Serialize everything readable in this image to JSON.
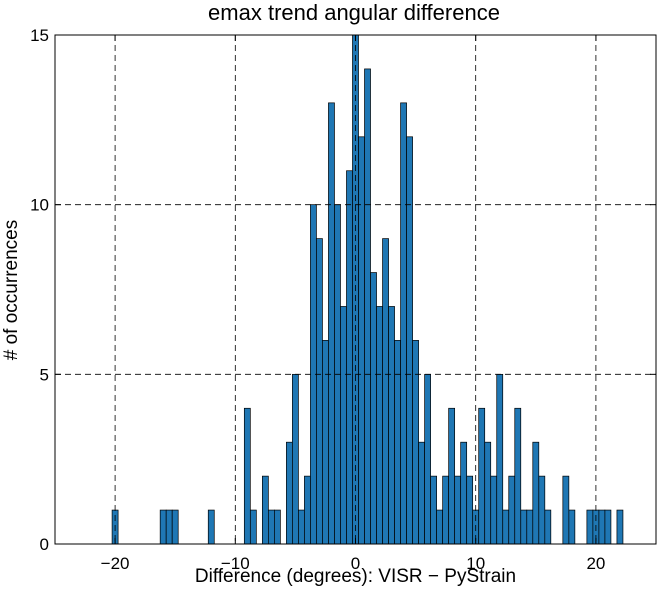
{
  "chart_data": {
    "type": "bar",
    "title": "emax trend angular difference",
    "xlabel": "Difference (degrees): VISR − PyStrain",
    "ylabel": "# of occurrences",
    "xlim": [
      -25,
      25
    ],
    "ylim": [
      0,
      15
    ],
    "xticks": [
      -20,
      -10,
      0,
      10,
      20
    ],
    "xtick_labels": [
      "−20",
      "−10",
      "0",
      "10",
      "20"
    ],
    "yticks": [
      0,
      5,
      10,
      15
    ],
    "ytick_labels": [
      "0",
      "5",
      "10",
      "15"
    ],
    "grid": true,
    "bar_color": "#1f77b4",
    "bin_width": 0.5,
    "bins": [
      {
        "x": -20.0,
        "count": 1
      },
      {
        "x": -16.0,
        "count": 1
      },
      {
        "x": -15.5,
        "count": 1
      },
      {
        "x": -15.0,
        "count": 1
      },
      {
        "x": -12.0,
        "count": 1
      },
      {
        "x": -9.0,
        "count": 4
      },
      {
        "x": -8.5,
        "count": 1
      },
      {
        "x": -7.5,
        "count": 2
      },
      {
        "x": -7.0,
        "count": 1
      },
      {
        "x": -6.5,
        "count": 1
      },
      {
        "x": -5.5,
        "count": 3
      },
      {
        "x": -5.0,
        "count": 5
      },
      {
        "x": -4.5,
        "count": 1
      },
      {
        "x": -4.0,
        "count": 2
      },
      {
        "x": -3.5,
        "count": 10
      },
      {
        "x": -3.0,
        "count": 9
      },
      {
        "x": -2.5,
        "count": 6
      },
      {
        "x": -2.0,
        "count": 13
      },
      {
        "x": -1.5,
        "count": 10
      },
      {
        "x": -1.0,
        "count": 7
      },
      {
        "x": -0.5,
        "count": 11
      },
      {
        "x": 0.0,
        "count": 15
      },
      {
        "x": 0.5,
        "count": 12
      },
      {
        "x": 1.0,
        "count": 14
      },
      {
        "x": 1.5,
        "count": 8
      },
      {
        "x": 2.0,
        "count": 7
      },
      {
        "x": 2.5,
        "count": 9
      },
      {
        "x": 3.0,
        "count": 7
      },
      {
        "x": 3.5,
        "count": 6
      },
      {
        "x": 4.0,
        "count": 13
      },
      {
        "x": 4.5,
        "count": 12
      },
      {
        "x": 5.0,
        "count": 6
      },
      {
        "x": 5.5,
        "count": 3
      },
      {
        "x": 6.0,
        "count": 5
      },
      {
        "x": 6.5,
        "count": 2
      },
      {
        "x": 7.0,
        "count": 1
      },
      {
        "x": 7.5,
        "count": 2
      },
      {
        "x": 8.0,
        "count": 4
      },
      {
        "x": 8.5,
        "count": 2
      },
      {
        "x": 9.0,
        "count": 3
      },
      {
        "x": 9.5,
        "count": 2
      },
      {
        "x": 10.0,
        "count": 1
      },
      {
        "x": 10.5,
        "count": 4
      },
      {
        "x": 11.0,
        "count": 3
      },
      {
        "x": 11.5,
        "count": 2
      },
      {
        "x": 12.0,
        "count": 5
      },
      {
        "x": 12.5,
        "count": 1
      },
      {
        "x": 13.0,
        "count": 2
      },
      {
        "x": 13.5,
        "count": 4
      },
      {
        "x": 14.0,
        "count": 1
      },
      {
        "x": 14.5,
        "count": 1
      },
      {
        "x": 15.0,
        "count": 3
      },
      {
        "x": 15.5,
        "count": 2
      },
      {
        "x": 16.0,
        "count": 1
      },
      {
        "x": 17.5,
        "count": 2
      },
      {
        "x": 18.0,
        "count": 1
      },
      {
        "x": 19.5,
        "count": 1
      },
      {
        "x": 20.0,
        "count": 1
      },
      {
        "x": 20.5,
        "count": 1
      },
      {
        "x": 21.0,
        "count": 1
      },
      {
        "x": 22.0,
        "count": 1
      }
    ]
  }
}
